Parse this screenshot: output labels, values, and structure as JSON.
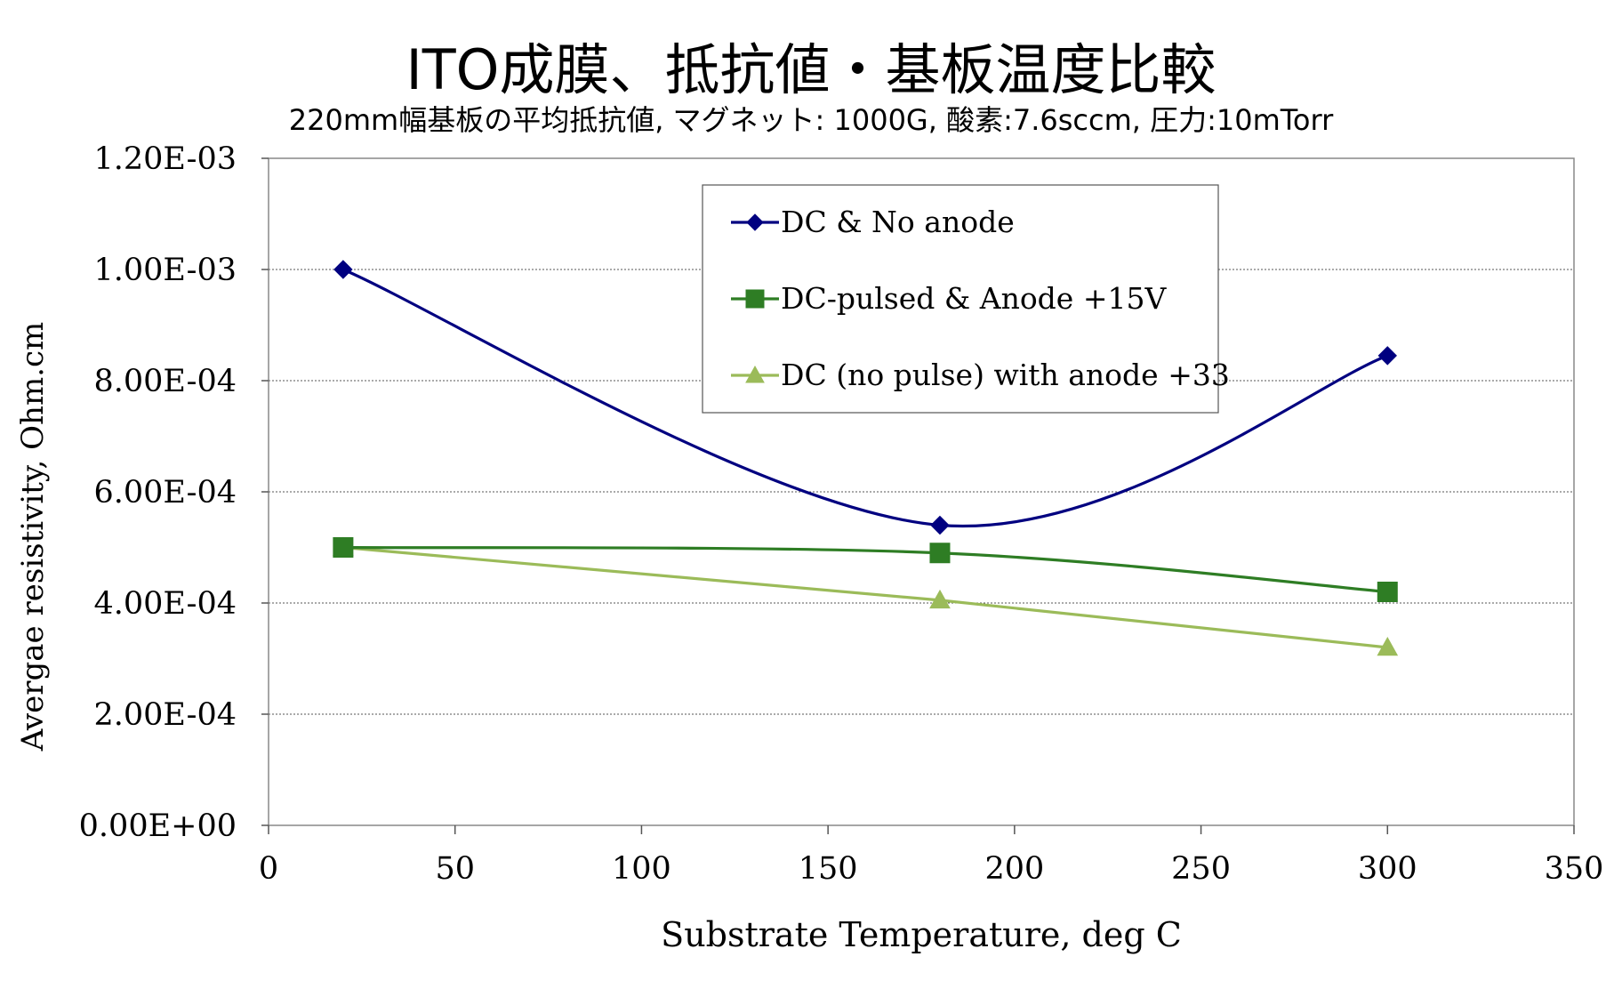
{
  "title": "ITO成膜、抵抗値・基板温度比較",
  "subtitle": "220mm幅基板の平均抵抗値, マグネット: 1000G, 酸素:7.6sccm, 圧力:10mTorr",
  "chart_data": {
    "type": "line",
    "xlabel": "Substrate Temperature, deg C",
    "ylabel": "Avergae resistivity, Ohm.cm",
    "xlim": [
      0,
      350
    ],
    "ylim": [
      0,
      0.0012
    ],
    "x_ticks": [
      0,
      50,
      100,
      150,
      200,
      250,
      300,
      350
    ],
    "x_tick_labels": [
      "0",
      "50",
      "100",
      "150",
      "200",
      "250",
      "300",
      "350"
    ],
    "y_ticks": [
      0,
      0.0002,
      0.0004,
      0.0006,
      0.0008,
      0.001,
      0.0012
    ],
    "y_tick_labels": [
      "0.00E+00",
      "2.00E-04",
      "4.00E-04",
      "6.00E-04",
      "8.00E-04",
      "1.00E-03",
      "1.20E-03"
    ],
    "grid": "horizontal",
    "legend_position": "top-center",
    "series": [
      {
        "name": "DC & No anode",
        "x": [
          20,
          180,
          300
        ],
        "values": [
          0.001,
          0.00054,
          0.000845
        ],
        "color": "#000080",
        "marker": "diamond",
        "smooth": true
      },
      {
        "name": "DC-pulsed & Anode +15V",
        "x": [
          20,
          180,
          300
        ],
        "values": [
          0.0005,
          0.00049,
          0.00042
        ],
        "color": "#2e7d24",
        "marker": "square",
        "smooth": true
      },
      {
        "name": "DC (no pulse) with anode +33",
        "x": [
          20,
          180,
          300
        ],
        "values": [
          0.0005,
          0.000405,
          0.00032
        ],
        "color": "#9bbb59",
        "marker": "triangle",
        "smooth": false
      }
    ]
  }
}
